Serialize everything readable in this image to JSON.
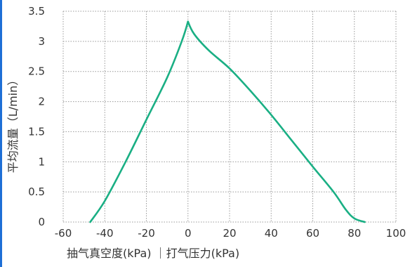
{
  "chart_data": {
    "type": "line",
    "xlabel": "抽气真空度(kPa) ｜打气压力(kPa)",
    "ylabel": "平均流量（L/min）",
    "xlim": [
      -60,
      100
    ],
    "ylim": [
      0,
      3.5
    ],
    "xticks": [
      "-60",
      "-40",
      "-20",
      "0",
      "20",
      "40",
      "60",
      "80",
      "100"
    ],
    "yticks": [
      "0",
      "0.5",
      "1",
      "1.5",
      "2",
      "2.5",
      "3",
      "3.5"
    ],
    "grid": true,
    "series": [
      {
        "color": "#1aaf84",
        "x": [
          -47,
          -40,
          -30,
          -20,
          -10,
          -3,
          0,
          3,
          10,
          20,
          30,
          40,
          50,
          60,
          70,
          76,
          80,
          85
        ],
        "y": [
          0,
          0.35,
          1.0,
          1.7,
          2.4,
          3.0,
          3.33,
          3.12,
          2.85,
          2.55,
          2.18,
          1.78,
          1.35,
          0.92,
          0.5,
          0.2,
          0.06,
          0.0
        ]
      }
    ]
  }
}
